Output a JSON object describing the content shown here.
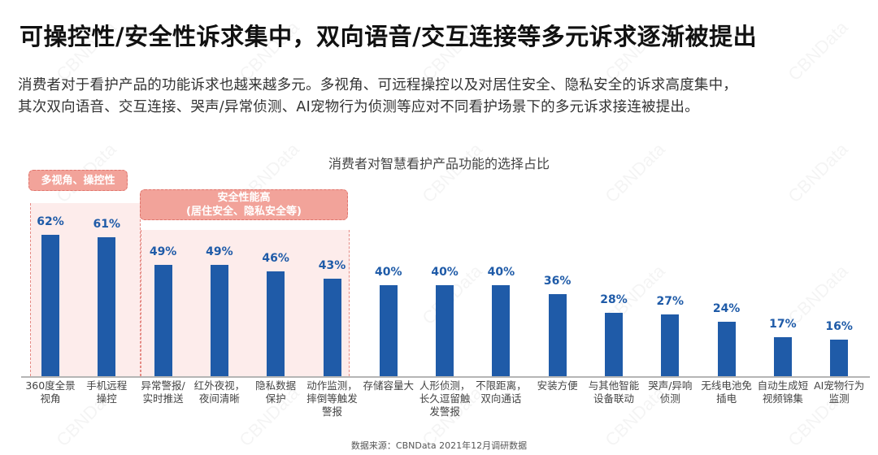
{
  "header": {
    "title": "可操控性/安全性诉求集中，双向语音/交互连接等多元诉求逐渐被提出",
    "description_lines": [
      "消费者对于看护产品的功能诉求也越来越多元。多视角、可远程操控以及对居住安全、隐私安全的诉求高度集中，",
      "其次双向语音、交互连接、哭声/异常侦测、AI宠物行为侦测等应对不同看护场景下的多元诉求接连被提出。"
    ]
  },
  "groups": [
    {
      "label_line1": "多视角、操控性",
      "label_line2": ""
    },
    {
      "label_line1": "安全性能高",
      "label_line2": "(居住安全、隐私安全等)"
    }
  ],
  "colors": {
    "bar": "#1f5ba8",
    "group_fill": "#fdeceb",
    "group_label": "#f2a39a"
  },
  "watermark": "CBNData",
  "source": "数据来源：CBNData 2021年12月调研数据",
  "chart_data": {
    "type": "bar",
    "title": "消费者对智慧看护产品功能的选择占比",
    "xlabel": "",
    "ylabel": "",
    "ylim": [
      0,
      70
    ],
    "grid": false,
    "legend": "none",
    "categories": [
      "360度全景视角",
      "手机远程操控",
      "异常警报/实时推送",
      "红外夜视，夜间清晰",
      "隐私数据保护",
      "动作监测，摔倒等触发警报",
      "存储容量大",
      "人形侦测，长久逗留触发警报",
      "不限距离，双向通话",
      "安装方便",
      "与其他智能设备联动",
      "哭声/异响侦测",
      "无线电池免插电",
      "自动生成短视频锦集",
      "AI宠物行为监测"
    ],
    "category_lines": [
      [
        "360度全景",
        "视角"
      ],
      [
        "手机远程",
        "操控"
      ],
      [
        "异常警报/",
        "实时推送"
      ],
      [
        "红外夜视，",
        "夜间清晰"
      ],
      [
        "隐私数据",
        "保护"
      ],
      [
        "动作监测，",
        "摔倒等触发",
        "警报"
      ],
      [
        "存储容量大"
      ],
      [
        "人形侦测，",
        "长久逗留触",
        "发警报"
      ],
      [
        "不限距离，",
        "双向通话"
      ],
      [
        "安装方便"
      ],
      [
        "与其他智能",
        "设备联动"
      ],
      [
        "哭声/异响",
        "侦测"
      ],
      [
        "无线电池免",
        "插电"
      ],
      [
        "自动生成短",
        "视频锦集"
      ],
      [
        "AI宠物行为",
        "监测"
      ]
    ],
    "values": [
      62,
      61,
      49,
      49,
      46,
      43,
      40,
      40,
      40,
      36,
      28,
      27,
      24,
      17,
      16
    ],
    "value_labels": [
      "62%",
      "61%",
      "49%",
      "49%",
      "46%",
      "43%",
      "40%",
      "40%",
      "40%",
      "36%",
      "28%",
      "27%",
      "24%",
      "17%",
      "16%"
    ],
    "annotations": [
      {
        "text": "多视角、操控性",
        "covers": [
          0,
          1
        ]
      },
      {
        "text": "安全性能高 (居住安全、隐私安全等)",
        "covers": [
          2,
          3,
          4,
          5
        ]
      }
    ]
  }
}
